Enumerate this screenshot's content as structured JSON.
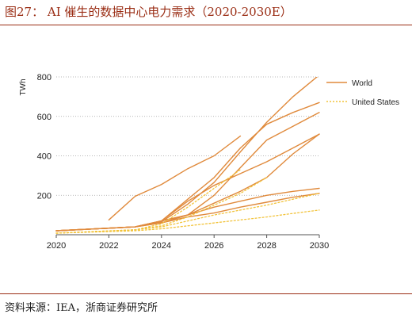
{
  "figure": {
    "title": "图27：  AI 催生的数据中心电力需求（2020-2030E）",
    "source": "资料来源：IEA，浙商证券研究所"
  },
  "colors": {
    "world": "#e08a3c",
    "us": "#f2c33a",
    "grid": "#a0a0a0",
    "axis": "#555555",
    "accent": "#9a2d14"
  },
  "chart_data": {
    "type": "line",
    "title": "",
    "xlabel": "",
    "ylabel": "TWh",
    "xlim": [
      2020,
      2030
    ],
    "ylim": [
      0,
      800
    ],
    "x_ticks": [
      2020,
      2022,
      2024,
      2026,
      2028,
      2030
    ],
    "y_ticks": [
      200,
      400,
      600,
      800
    ],
    "grid": "horizontal dotted",
    "legend": {
      "position": "right",
      "entries": [
        "World",
        "United States"
      ]
    },
    "series": [
      {
        "name": "World",
        "group": "World",
        "points": [
          [
            2022,
            75
          ],
          [
            2023,
            195
          ],
          [
            2024,
            255
          ],
          [
            2025,
            335
          ],
          [
            2026,
            400
          ],
          [
            2027,
            500
          ]
        ]
      },
      {
        "name": "World",
        "group": "World",
        "points": [
          [
            2020,
            20
          ],
          [
            2023,
            40
          ],
          [
            2024,
            65
          ],
          [
            2025,
            155
          ],
          [
            2026,
            265
          ],
          [
            2027,
            420
          ],
          [
            2028,
            570
          ],
          [
            2029,
            700
          ],
          [
            2030,
            810
          ]
        ]
      },
      {
        "name": "World",
        "group": "World",
        "points": [
          [
            2020,
            20
          ],
          [
            2023,
            40
          ],
          [
            2024,
            70
          ],
          [
            2025,
            180
          ],
          [
            2026,
            290
          ],
          [
            2027,
            440
          ],
          [
            2028,
            560
          ],
          [
            2029,
            620
          ],
          [
            2030,
            670
          ]
        ]
      },
      {
        "name": "World",
        "group": "World",
        "points": [
          [
            2020,
            20
          ],
          [
            2023,
            40
          ],
          [
            2024,
            70
          ],
          [
            2025,
            100
          ],
          [
            2026,
            200
          ],
          [
            2027,
            340
          ],
          [
            2028,
            480
          ],
          [
            2029,
            550
          ],
          [
            2030,
            620
          ]
        ]
      },
      {
        "name": "World",
        "group": "World",
        "points": [
          [
            2020,
            20
          ],
          [
            2023,
            40
          ],
          [
            2024,
            70
          ],
          [
            2025,
            170
          ],
          [
            2026,
            250
          ],
          [
            2027,
            310
          ],
          [
            2028,
            370
          ],
          [
            2029,
            440
          ],
          [
            2030,
            510
          ]
        ]
      },
      {
        "name": "World",
        "group": "World",
        "points": [
          [
            2020,
            20
          ],
          [
            2023,
            40
          ],
          [
            2024,
            70
          ],
          [
            2025,
            100
          ],
          [
            2026,
            160
          ],
          [
            2027,
            220
          ],
          [
            2028,
            290
          ],
          [
            2029,
            410
          ],
          [
            2030,
            510
          ]
        ]
      },
      {
        "name": "World",
        "group": "World",
        "points": [
          [
            2020,
            20
          ],
          [
            2023,
            40
          ],
          [
            2024,
            60
          ],
          [
            2025,
            100
          ],
          [
            2026,
            140
          ],
          [
            2027,
            170
          ],
          [
            2028,
            200
          ],
          [
            2029,
            220
          ],
          [
            2030,
            235
          ]
        ]
      },
      {
        "name": "World",
        "group": "World",
        "points": [
          [
            2020,
            20
          ],
          [
            2023,
            40
          ],
          [
            2024,
            60
          ],
          [
            2025,
            90
          ],
          [
            2026,
            110
          ],
          [
            2027,
            140
          ],
          [
            2028,
            165
          ],
          [
            2029,
            190
          ],
          [
            2030,
            210
          ]
        ]
      },
      {
        "name": "United States",
        "group": "United States",
        "points": [
          [
            2020,
            8
          ],
          [
            2023,
            25
          ],
          [
            2024,
            55
          ],
          [
            2025,
            140
          ],
          [
            2026,
            235
          ],
          [
            2027,
            330
          ]
        ]
      },
      {
        "name": "United States",
        "group": "United States",
        "points": [
          [
            2020,
            8
          ],
          [
            2023,
            25
          ],
          [
            2024,
            45
          ],
          [
            2025,
            90
          ],
          [
            2026,
            150
          ],
          [
            2027,
            210
          ],
          [
            2028,
            290
          ]
        ]
      },
      {
        "name": "United States",
        "group": "United States",
        "points": [
          [
            2020,
            8
          ],
          [
            2023,
            25
          ],
          [
            2024,
            40
          ],
          [
            2025,
            70
          ],
          [
            2026,
            100
          ],
          [
            2027,
            125
          ],
          [
            2028,
            150
          ],
          [
            2029,
            180
          ],
          [
            2030,
            210
          ]
        ]
      },
      {
        "name": "United States",
        "group": "United States",
        "points": [
          [
            2020,
            8
          ],
          [
            2023,
            20
          ],
          [
            2024,
            30
          ],
          [
            2025,
            45
          ],
          [
            2026,
            60
          ],
          [
            2027,
            75
          ],
          [
            2028,
            90
          ],
          [
            2029,
            108
          ],
          [
            2030,
            125
          ]
        ]
      }
    ]
  }
}
